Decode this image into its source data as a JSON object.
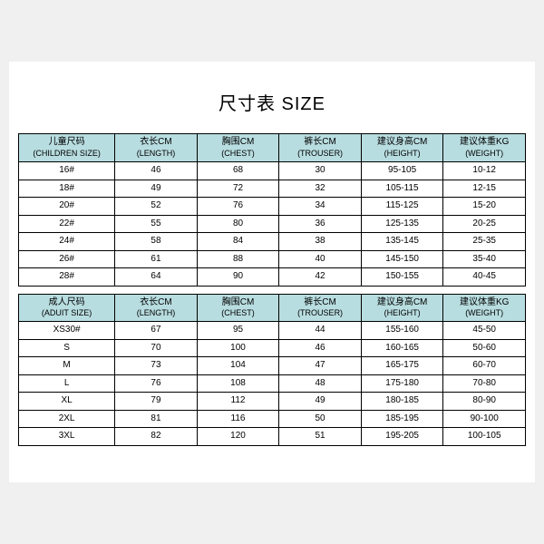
{
  "title": "尺寸表 SIZE",
  "colors": {
    "header_bg": "#b8dde0",
    "border": "#000000",
    "card_bg": "#ffffff",
    "page_bg": "#f0f0f0"
  },
  "columns": {
    "children": [
      {
        "cn": "儿童尺码",
        "en": "(CHILDREN SIZE)"
      },
      {
        "cn": "衣长CM",
        "en": "(LENGTH)"
      },
      {
        "cn": "胸围CM",
        "en": "(CHEST)"
      },
      {
        "cn": "裤长CM",
        "en": "(TROUSER)"
      },
      {
        "cn": "建议身高CM",
        "en": "(HEIGHT)"
      },
      {
        "cn": "建议体重KG",
        "en": "(WEIGHT)"
      }
    ],
    "adult": [
      {
        "cn": "成人尺码",
        "en": "(ADUIT SIZE)"
      },
      {
        "cn": "衣长CM",
        "en": "(LENGTH)"
      },
      {
        "cn": "胸围CM",
        "en": "(CHEST)"
      },
      {
        "cn": "裤长CM",
        "en": "(TROUSER)"
      },
      {
        "cn": "建议身高CM",
        "en": "(HEIGHT)"
      },
      {
        "cn": "建议体重KG",
        "en": "(WEIGHT)"
      }
    ]
  },
  "children_rows": [
    [
      "16#",
      "46",
      "68",
      "30",
      "95-105",
      "10-12"
    ],
    [
      "18#",
      "49",
      "72",
      "32",
      "105-115",
      "12-15"
    ],
    [
      "20#",
      "52",
      "76",
      "34",
      "115-125",
      "15-20"
    ],
    [
      "22#",
      "55",
      "80",
      "36",
      "125-135",
      "20-25"
    ],
    [
      "24#",
      "58",
      "84",
      "38",
      "135-145",
      "25-35"
    ],
    [
      "26#",
      "61",
      "88",
      "40",
      "145-150",
      "35-40"
    ],
    [
      "28#",
      "64",
      "90",
      "42",
      "150-155",
      "40-45"
    ]
  ],
  "adult_rows": [
    [
      "XS30#",
      "67",
      "95",
      "44",
      "155-160",
      "45-50"
    ],
    [
      "S",
      "70",
      "100",
      "46",
      "160-165",
      "50-60"
    ],
    [
      "M",
      "73",
      "104",
      "47",
      "165-175",
      "60-70"
    ],
    [
      "L",
      "76",
      "108",
      "48",
      "175-180",
      "70-80"
    ],
    [
      "XL",
      "79",
      "112",
      "49",
      "180-185",
      "80-90"
    ],
    [
      "2XL",
      "81",
      "116",
      "50",
      "185-195",
      "90-100"
    ],
    [
      "3XL",
      "82",
      "120",
      "51",
      "195-205",
      "100-105"
    ]
  ]
}
